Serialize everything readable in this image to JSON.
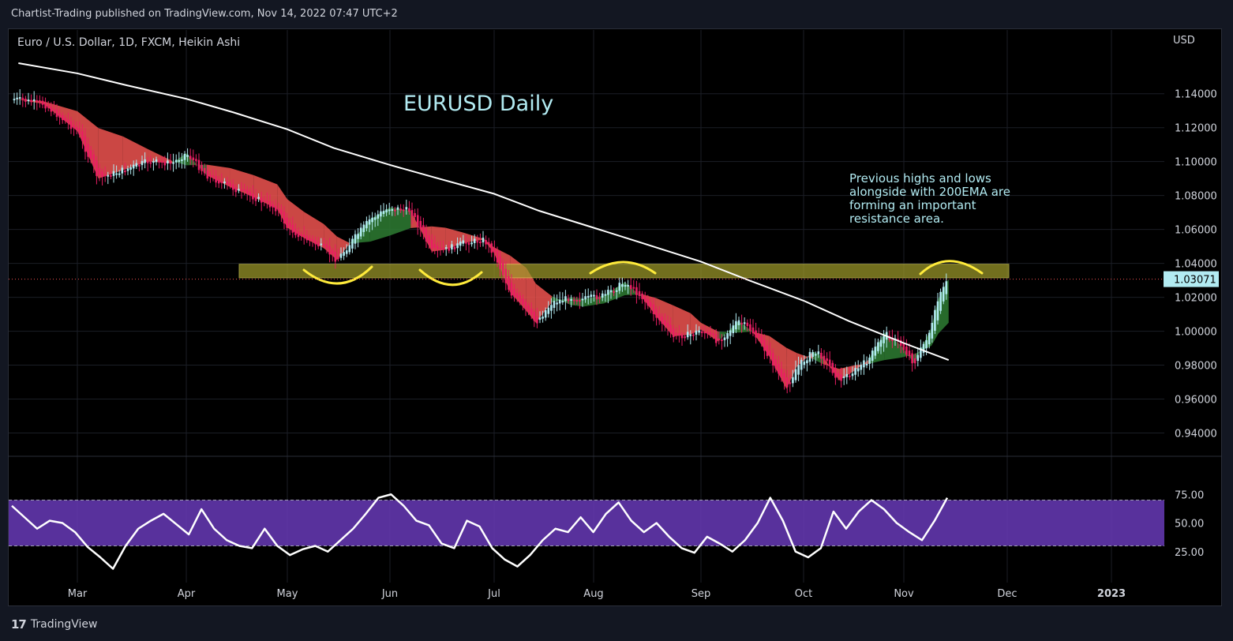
{
  "header": {
    "published_line": "Chartist-Trading published on TradingView.com, Nov 14, 2022 07:47 UTC+2"
  },
  "footer": {
    "brand": "TradingView",
    "logo_icon": "tradingview-logo-icon"
  },
  "symbol_line": "Euro / U.S. Dollar, 1D, FXCM, Heikin Ashi",
  "currency_label": "USD",
  "title": "EURUSD Daily",
  "annotation": [
    "Previous highs and lows",
    "alongside with 200EMA are",
    "forming an important",
    "resistance area."
  ],
  "colors": {
    "background": "#000000",
    "bull_candle": "#b2ebf2",
    "bear_candle": "#e91e63",
    "ribbon_bear": "#ef5350",
    "ribbon_bull": "#2e7d32",
    "ema": "#ffffff",
    "zone": "#9e9a2a",
    "arcs": "#ffeb3b",
    "rsi_band": "#673ab7",
    "rsi_line": "#ffffff",
    "title": "#b2ebf2",
    "annotation": "#b2ebf2"
  },
  "chart_data": [
    {
      "type": "candlestick",
      "title": "EURUSD Daily",
      "price_axis": {
        "ticks": [
          "1.14000",
          "1.12000",
          "1.10000",
          "1.08000",
          "1.06000",
          "1.04000",
          "1.02000",
          "1.00000",
          "0.98000",
          "0.96000",
          "0.94000"
        ],
        "ylim": [
          0.93,
          1.165
        ]
      },
      "time_axis": {
        "ticks": [
          "Mar",
          "Apr",
          "May",
          "Jun",
          "Jul",
          "Aug",
          "Sep",
          "Oct",
          "Nov",
          "Dec",
          "2023"
        ]
      },
      "last_price": "1.03071",
      "resistance_zone": [
        1.0315,
        1.0395
      ],
      "series": [
        {
          "name": "200EMA",
          "points": [
            [
              "Feb 15",
              1.158
            ],
            [
              "Mar 1",
              1.152
            ],
            [
              "Mar 15",
              1.145
            ],
            [
              "Apr 1",
              1.137
            ],
            [
              "Apr 15",
              1.129
            ],
            [
              "May 1",
              1.119
            ],
            [
              "May 15",
              1.108
            ],
            [
              "Jun 1",
              1.098
            ],
            [
              "Jun 15",
              1.09
            ],
            [
              "Jul 1",
              1.081
            ],
            [
              "Jul 15",
              1.071
            ],
            [
              "Aug 1",
              1.061
            ],
            [
              "Aug 15",
              1.052
            ],
            [
              "Sep 1",
              1.041
            ],
            [
              "Sep 15",
              1.03
            ],
            [
              "Oct 1",
              1.018
            ],
            [
              "Oct 15",
              1.006
            ],
            [
              "Nov 1",
              0.993
            ],
            [
              "Nov 14",
              0.983
            ]
          ]
        },
        {
          "name": "Heikin Ashi close",
          "points": [
            [
              "Feb 14",
              1.137
            ],
            [
              "Feb 21",
              1.134
            ],
            [
              "Mar 1",
              1.118
            ],
            [
              "Mar 7",
              1.09
            ],
            [
              "Mar 14",
              1.095
            ],
            [
              "Mar 21",
              1.1
            ],
            [
              "Mar 28",
              1.099
            ],
            [
              "Apr 1",
              1.105
            ],
            [
              "Apr 7",
              1.092
            ],
            [
              "Apr 14",
              1.085
            ],
            [
              "Apr 21",
              1.079
            ],
            [
              "Apr 28",
              1.072
            ],
            [
              "May 1",
              1.061
            ],
            [
              "May 6",
              1.055
            ],
            [
              "May 12",
              1.049
            ],
            [
              "May 16",
              1.042
            ],
            [
              "May 20",
              1.052
            ],
            [
              "May 26",
              1.066
            ],
            [
              "Jun 1",
              1.073
            ],
            [
              "Jun 7",
              1.071
            ],
            [
              "Jun 13",
              1.047
            ],
            [
              "Jun 17",
              1.048
            ],
            [
              "Jun 22",
              1.052
            ],
            [
              "Jun 28",
              1.054
            ],
            [
              "Jul 1",
              1.046
            ],
            [
              "Jul 6",
              1.023
            ],
            [
              "Jul 11",
              1.012
            ],
            [
              "Jul 14",
              1.005
            ],
            [
              "Jul 19",
              1.017
            ],
            [
              "Jul 25",
              1.02
            ],
            [
              "Jul 29",
              1.019
            ],
            [
              "Aug 4",
              1.021
            ],
            [
              "Aug 10",
              1.029
            ],
            [
              "Aug 15",
              1.02
            ],
            [
              "Aug 19",
              1.009
            ],
            [
              "Aug 24",
              0.997
            ],
            [
              "Aug 29",
              0.998
            ],
            [
              "Sep 1",
              1.001
            ],
            [
              "Sep 6",
              0.994
            ],
            [
              "Sep 12",
              1.006
            ],
            [
              "Sep 16",
              1.0
            ],
            [
              "Sep 21",
              0.985
            ],
            [
              "Sep 26",
              0.966
            ],
            [
              "Sep 29",
              0.979
            ],
            [
              "Oct 4",
              0.988
            ],
            [
              "Oct 7",
              0.985
            ],
            [
              "Oct 12",
              0.971
            ],
            [
              "Oct 17",
              0.977
            ],
            [
              "Oct 21",
              0.983
            ],
            [
              "Oct 26",
              0.999
            ],
            [
              "Oct 31",
              0.992
            ],
            [
              "Nov 4",
              0.981
            ],
            [
              "Nov 9",
              1.002
            ],
            [
              "Nov 11",
              1.019
            ],
            [
              "Nov 14",
              1.031
            ]
          ]
        }
      ]
    },
    {
      "type": "line",
      "name": "RSI",
      "ticks": [
        "75.00",
        "50.00",
        "25.00"
      ],
      "ylim": [
        0,
        100
      ],
      "band": [
        30,
        70
      ],
      "values": [
        65,
        55,
        45,
        52,
        50,
        42,
        29,
        20,
        10,
        30,
        45,
        52,
        58,
        49,
        40,
        62,
        45,
        35,
        30,
        28,
        45,
        30,
        22,
        27,
        30,
        25,
        35,
        45,
        58,
        72,
        75,
        65,
        52,
        48,
        32,
        28,
        52,
        47,
        28,
        18,
        12,
        22,
        35,
        45,
        42,
        55,
        42,
        58,
        68,
        52,
        42,
        50,
        38,
        28,
        24,
        38,
        32,
        25,
        35,
        50,
        72,
        52,
        25,
        20,
        28,
        60,
        45,
        60,
        70,
        62,
        50,
        42,
        35,
        52,
        72
      ]
    }
  ]
}
